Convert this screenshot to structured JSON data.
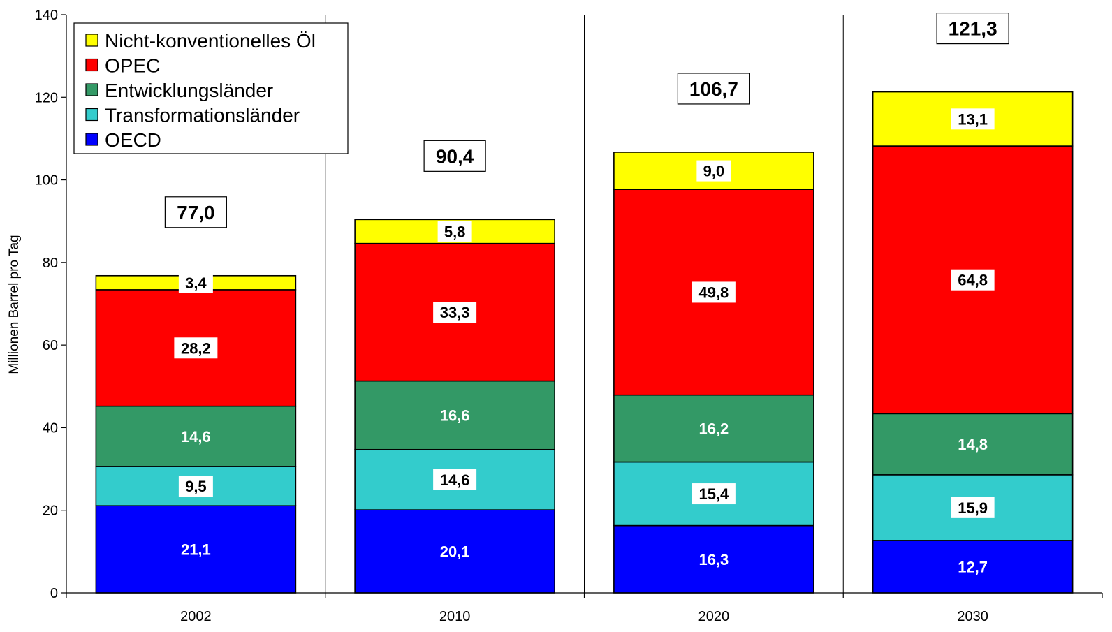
{
  "chart_data": {
    "type": "bar",
    "stacked": true,
    "ylabel": "Millionen Barrel pro Tag",
    "xlabel": "",
    "ylim": [
      0,
      140
    ],
    "yticks": [
      0,
      20,
      40,
      60,
      80,
      100,
      120,
      140
    ],
    "grid": false,
    "legend_position": "top-left",
    "categories": [
      "2002",
      "2010",
      "2020",
      "2030"
    ],
    "totals": [
      "77,0",
      "90,4",
      "106,7",
      "121,3"
    ],
    "series": [
      {
        "name": "OECD",
        "color": "#0000ff",
        "label_color": "#ffffff",
        "label_box": false,
        "values": [
          21.1,
          20.1,
          16.3,
          12.7
        ],
        "labels": [
          "21,1",
          "20,1",
          "16,3",
          "12,7"
        ]
      },
      {
        "name": "Transformationsländer",
        "color": "#33cccc",
        "label_color": "#000000",
        "label_box": true,
        "values": [
          9.5,
          14.6,
          15.4,
          15.9
        ],
        "labels": [
          "9,5",
          "14,6",
          "15,4",
          "15,9"
        ]
      },
      {
        "name": "Entwicklungsländer",
        "color": "#339966",
        "label_color": "#ffffff",
        "label_box": false,
        "values": [
          14.6,
          16.6,
          16.2,
          14.8
        ],
        "labels": [
          "14,6",
          "16,6",
          "16,2",
          "14,8"
        ]
      },
      {
        "name": "OPEC",
        "color": "#ff0000",
        "label_color": "#000000",
        "label_box": true,
        "values": [
          28.2,
          33.3,
          49.8,
          64.8
        ],
        "labels": [
          "28,2",
          "33,3",
          "49,8",
          "64,8"
        ]
      },
      {
        "name": "Nicht-konventionelles Öl",
        "color": "#ffff00",
        "label_color": "#000000",
        "label_box": true,
        "values": [
          3.4,
          5.8,
          9.0,
          13.1
        ],
        "labels": [
          "3,4",
          "5,8",
          "9,0",
          "13,1"
        ]
      }
    ],
    "legend_order": [
      "Nicht-konventionelles Öl",
      "OPEC",
      "Entwicklungsländer",
      "Transformationsländer",
      "OECD"
    ]
  }
}
